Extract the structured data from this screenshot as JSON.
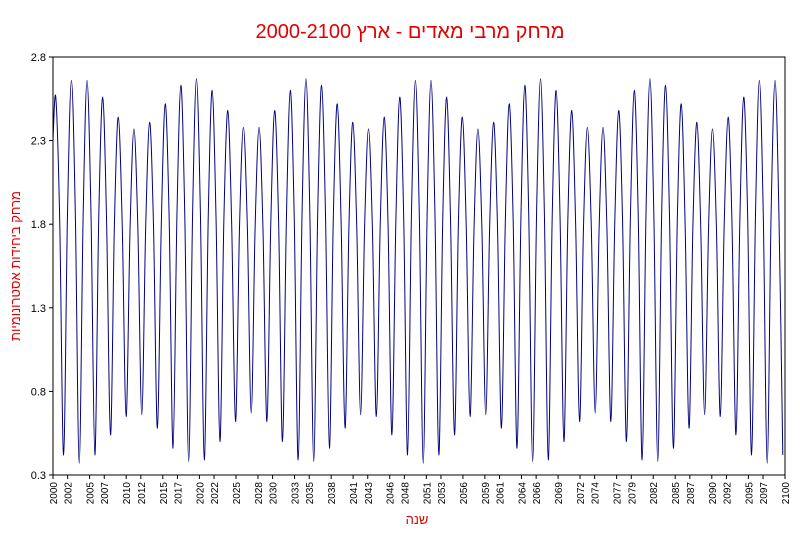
{
  "chart_data": {
    "type": "line",
    "title": "מרחק מרבי מאדים - ארץ   2000-2100",
    "x_label": "שנה",
    "y_label": "מרחק ביחידות אסטרונומיות",
    "xlim": [
      2000,
      2100
    ],
    "ylim": [
      0.3,
      2.8
    ],
    "xticks": [
      2000,
      2002,
      2005,
      2007,
      2010,
      2012,
      2015,
      2017,
      2020,
      2022,
      2025,
      2028,
      2030,
      2033,
      2035,
      2038,
      2041,
      2043,
      2046,
      2048,
      2051,
      2053,
      2056,
      2059,
      2061,
      2064,
      2066,
      2069,
      2072,
      2074,
      2077,
      2079,
      2082,
      2085,
      2087,
      2090,
      2092,
      2095,
      2097,
      2100
    ],
    "yticks": [
      0.3,
      0.8,
      1.3,
      1.8,
      2.3,
      2.8
    ],
    "grid": false,
    "x": [
      2000,
      2000.38,
      2000.91,
      2001.45,
      2001.98,
      2002.52,
      2003.05,
      2003.58,
      2004.12,
      2004.65,
      2005.19,
      2005.72,
      2006.25,
      2006.79,
      2007.32,
      2007.86,
      2008.39,
      2008.92,
      2009.46,
      2009.99,
      2010.53,
      2011.06,
      2011.59,
      2012.13,
      2012.66,
      2013.2,
      2013.73,
      2014.26,
      2014.8,
      2015.33,
      2015.87,
      2016.4,
      2016.93,
      2017.47,
      2018.0,
      2018.54,
      2019.07,
      2019.6,
      2020.14,
      2020.67,
      2021.21,
      2021.74,
      2022.27,
      2022.81,
      2023.34,
      2023.88,
      2024.41,
      2024.94,
      2025.48,
      2026.01,
      2026.55,
      2027.08,
      2027.61,
      2028.15,
      2028.68,
      2029.22,
      2029.75,
      2030.28,
      2030.82,
      2031.35,
      2031.89,
      2032.42,
      2032.95,
      2033.49,
      2034.02,
      2034.56,
      2035.09,
      2035.62,
      2036.16,
      2036.69,
      2037.23,
      2037.76,
      2038.29,
      2038.83,
      2039.36,
      2039.9,
      2040.43,
      2040.96,
      2041.5,
      2042.03,
      2042.57,
      2043.1,
      2043.63,
      2044.17,
      2044.7,
      2045.24,
      2045.77,
      2046.3,
      2046.84,
      2047.37,
      2047.91,
      2048.44,
      2048.97,
      2049.51,
      2050.04,
      2050.58,
      2051.11,
      2051.64,
      2052.18,
      2052.71,
      2053.25,
      2053.78,
      2054.31,
      2054.85,
      2055.38,
      2055.92,
      2056.45,
      2056.98,
      2057.52,
      2058.05,
      2058.59,
      2059.12,
      2059.65,
      2060.19,
      2060.72,
      2061.26,
      2061.79,
      2062.32,
      2062.86,
      2063.39,
      2063.93,
      2064.46,
      2064.99,
      2065.53,
      2066.06,
      2066.6,
      2067.13,
      2067.66,
      2068.2,
      2068.73,
      2069.27,
      2069.8,
      2070.33,
      2070.87,
      2071.4,
      2071.94,
      2072.47,
      2073.0,
      2073.54,
      2074.07,
      2074.61,
      2075.14,
      2075.67,
      2076.21,
      2076.74,
      2077.28,
      2077.81,
      2078.34,
      2078.88,
      2079.41,
      2079.95,
      2080.48,
      2081.01,
      2081.55,
      2082.08,
      2082.62,
      2083.15,
      2083.68,
      2084.22,
      2084.75,
      2085.29,
      2085.82,
      2086.35,
      2086.89,
      2087.42,
      2087.96,
      2088.49,
      2089.02,
      2089.56,
      2090.09,
      2090.63,
      2091.16,
      2091.69,
      2092.23,
      2092.76,
      2093.3,
      2093.83,
      2094.36,
      2094.9,
      2095.43,
      2095.97,
      2096.5,
      2097.03,
      2097.57,
      2098.1,
      2098.64,
      2099.17,
      2099.7
    ],
    "series": [
      {
        "color": "#000080",
        "values": [
          2.3,
          2.56,
          1.84,
          0.42,
          1.86,
          2.66,
          1.86,
          0.37,
          1.86,
          2.66,
          1.86,
          0.42,
          1.84,
          2.56,
          1.82,
          0.54,
          1.8,
          2.44,
          1.79,
          0.65,
          1.78,
          2.37,
          1.78,
          0.66,
          1.78,
          2.41,
          1.79,
          0.58,
          1.81,
          2.52,
          1.83,
          0.46,
          1.85,
          2.63,
          1.86,
          0.38,
          1.86,
          2.67,
          1.86,
          0.39,
          1.85,
          2.6,
          1.84,
          0.5,
          1.82,
          2.48,
          1.8,
          0.62,
          1.78,
          2.38,
          1.78,
          0.67,
          1.78,
          2.38,
          1.78,
          0.62,
          1.8,
          2.48,
          1.82,
          0.5,
          1.84,
          2.6,
          1.85,
          0.39,
          1.86,
          2.67,
          1.86,
          0.38,
          1.86,
          2.63,
          1.85,
          0.46,
          1.83,
          2.52,
          1.81,
          0.58,
          1.79,
          2.41,
          1.78,
          0.66,
          1.78,
          2.37,
          1.78,
          0.65,
          1.79,
          2.44,
          1.8,
          0.54,
          1.82,
          2.56,
          1.84,
          0.42,
          1.86,
          2.66,
          1.86,
          0.37,
          1.86,
          2.66,
          1.86,
          0.42,
          1.84,
          2.56,
          1.82,
          0.54,
          1.8,
          2.44,
          1.79,
          0.65,
          1.78,
          2.37,
          1.78,
          0.66,
          1.78,
          2.41,
          1.79,
          0.58,
          1.81,
          2.52,
          1.83,
          0.46,
          1.85,
          2.63,
          1.86,
          0.38,
          1.86,
          2.67,
          1.86,
          0.39,
          1.85,
          2.6,
          1.84,
          0.5,
          1.82,
          2.48,
          1.8,
          0.62,
          1.78,
          2.38,
          1.78,
          0.67,
          1.78,
          2.38,
          1.78,
          0.62,
          1.8,
          2.48,
          1.82,
          0.5,
          1.84,
          2.6,
          1.85,
          0.39,
          1.86,
          2.67,
          1.86,
          0.38,
          1.86,
          2.63,
          1.85,
          0.46,
          1.83,
          2.52,
          1.81,
          0.58,
          1.79,
          2.41,
          1.78,
          0.66,
          1.78,
          2.37,
          1.78,
          0.65,
          1.79,
          2.44,
          1.8,
          0.54,
          1.82,
          2.56,
          1.84,
          0.42,
          1.86,
          2.66,
          1.86,
          0.37,
          1.86,
          2.66,
          1.86,
          0.42
        ]
      }
    ]
  }
}
